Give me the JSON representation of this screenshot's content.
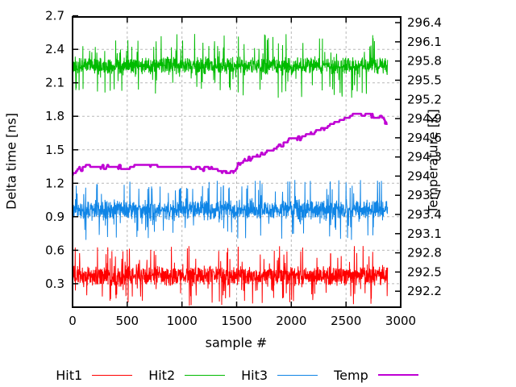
{
  "chart_data": {
    "type": "line",
    "title": "",
    "xlabel": "sample #",
    "ylabel_left": "Delta time [ns]",
    "ylabel_right": "Temperature [K]",
    "x_tick_labels": [
      "0",
      "500",
      "1000",
      "1500",
      "2000",
      "2500",
      "3000"
    ],
    "y_left_tick_labels": [
      "0.3",
      "0.6",
      "0.9",
      "1.2",
      "1.5",
      "1.8",
      "2.1",
      "2.4",
      "2.7"
    ],
    "y_right_tick_labels": [
      "292.2",
      "292.5",
      "292.8",
      "293.1",
      "293.4",
      "293.7",
      "294",
      "294.3",
      "294.6",
      "294.9",
      "295.2",
      "295.5",
      "295.8",
      "296.1",
      "296.4"
    ],
    "x_range": [
      0,
      3000
    ],
    "y_left_range": [
      0.09,
      2.69
    ],
    "y_right_range": [
      291.95,
      296.49
    ],
    "grid": true,
    "grid_color": "#b8b8b8",
    "border_color": "#000000",
    "sample_count": 2880,
    "noise_seed": 1234,
    "series": [
      {
        "name": "Hit1",
        "color": "#ff0000",
        "axis": "left",
        "style": "noisy",
        "mean": 0.37,
        "dense_halfwidth": 0.1,
        "spike_max": 0.27,
        "spike_prob": 0.09
      },
      {
        "name": "Hit2",
        "color": "#00bb00",
        "axis": "left",
        "style": "noisy",
        "mean": 2.25,
        "dense_halfwidth": 0.09,
        "spike_max": 0.29,
        "spike_prob": 0.09
      },
      {
        "name": "Hit3",
        "color": "#0f85e6",
        "axis": "left",
        "style": "noisy",
        "mean": 0.96,
        "dense_halfwidth": 0.1,
        "spike_max": 0.27,
        "spike_prob": 0.09
      },
      {
        "name": "Temp",
        "color": "#bf00d4",
        "axis": "right",
        "style": "steps",
        "quantum_K": 0.032,
        "anchors_sample_K": [
          [
            0,
            294.03
          ],
          [
            60,
            294.1
          ],
          [
            140,
            294.14
          ],
          [
            700,
            294.14
          ],
          [
            1150,
            294.13
          ],
          [
            1320,
            294.1
          ],
          [
            1400,
            294.03
          ],
          [
            1460,
            294.08
          ],
          [
            1520,
            294.18
          ],
          [
            1620,
            294.27
          ],
          [
            1730,
            294.36
          ],
          [
            1840,
            294.45
          ],
          [
            1950,
            294.53
          ],
          [
            2060,
            294.59
          ],
          [
            2170,
            294.67
          ],
          [
            2290,
            294.75
          ],
          [
            2400,
            294.84
          ],
          [
            2520,
            294.92
          ],
          [
            2620,
            294.94
          ],
          [
            2700,
            294.97
          ],
          [
            2780,
            294.94
          ],
          [
            2830,
            294.89
          ],
          [
            2880,
            294.81
          ]
        ]
      }
    ],
    "legend": [
      {
        "label": "Hit1",
        "color": "#ff0000",
        "line_weight": 1.5
      },
      {
        "label": "Hit2",
        "color": "#00bb00",
        "line_weight": 1.5
      },
      {
        "label": "Hit3",
        "color": "#0f85e6",
        "line_weight": 1.5
      },
      {
        "label": "Temp",
        "color": "#bf00d4",
        "line_weight": 2.5
      }
    ],
    "legend_position": "below"
  }
}
